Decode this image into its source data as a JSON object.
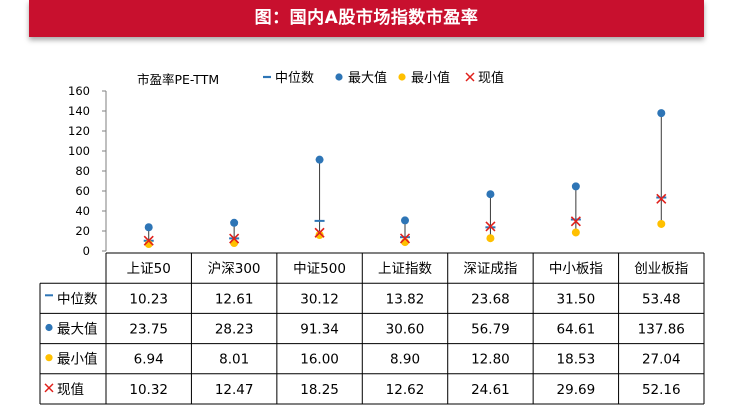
{
  "banner": {
    "title": "图：国内A股市场指数市盈率"
  },
  "colors": {
    "banner": "#c8102e",
    "median": "#2e75b6",
    "max": "#2e75b6",
    "min": "#ffc000",
    "current": "#e0201b",
    "stem": "#3a3a3a"
  },
  "chart_data": {
    "type": "scatter",
    "ylabel": "市盈率PE-TTM",
    "ylim": [
      0,
      160
    ],
    "yticks": [
      0,
      20,
      40,
      60,
      80,
      100,
      120,
      140,
      160
    ],
    "grid": false,
    "legend_position": "top",
    "categories": [
      "上证50",
      "沪深300",
      "中证500",
      "上证指数",
      "深证成指",
      "中小板指",
      "创业板指"
    ],
    "series": [
      {
        "name": "中位数",
        "marker": "dash",
        "values": [
          10.23,
          12.61,
          30.12,
          13.82,
          23.68,
          31.5,
          53.48
        ]
      },
      {
        "name": "最大值",
        "marker": "circle",
        "values": [
          23.75,
          28.23,
          91.34,
          30.6,
          56.79,
          64.61,
          137.86
        ]
      },
      {
        "name": "最小值",
        "marker": "circle",
        "values": [
          6.94,
          8.01,
          16.0,
          8.9,
          12.8,
          18.53,
          27.04
        ]
      },
      {
        "name": "现值",
        "marker": "x",
        "values": [
          10.32,
          12.47,
          18.25,
          12.62,
          24.61,
          29.69,
          52.16
        ]
      }
    ],
    "table": {
      "rows": [
        [
          "10.23",
          "12.61",
          "30.12",
          "13.82",
          "23.68",
          "31.50",
          "53.48"
        ],
        [
          "23.75",
          "28.23",
          "91.34",
          "30.60",
          "56.79",
          "64.61",
          "137.86"
        ],
        [
          "6.94",
          "8.01",
          "16.00",
          "8.90",
          "12.80",
          "18.53",
          "27.04"
        ],
        [
          "10.32",
          "12.47",
          "18.25",
          "12.62",
          "24.61",
          "29.69",
          "52.16"
        ]
      ]
    }
  }
}
